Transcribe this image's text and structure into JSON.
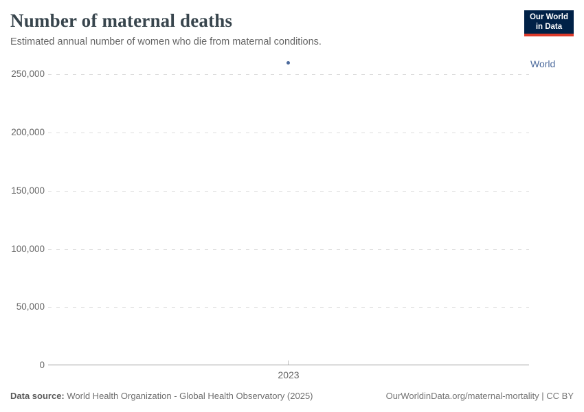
{
  "header": {
    "title": "Number of maternal deaths",
    "subtitle": "Estimated annual number of women who die from maternal conditions."
  },
  "logo": {
    "line1": "Our World",
    "line2": "in Data"
  },
  "chart_data": {
    "type": "scatter",
    "title": "Number of maternal deaths",
    "subtitle": "Estimated annual number of women who die from maternal conditions.",
    "categories": [
      2023
    ],
    "series": [
      {
        "name": "World",
        "x": [
          2023
        ],
        "values": [
          260000
        ],
        "color": "#4c6a9c"
      }
    ],
    "xlabel": "",
    "ylabel": "",
    "x_ticks": [
      "2023"
    ],
    "y_ticks": [
      "0",
      "50,000",
      "100,000",
      "150,000",
      "200,000",
      "250,000"
    ],
    "ylim": [
      0,
      262000
    ],
    "grid": "horizontal-dashed",
    "legend_position": "inline-right"
  },
  "footer": {
    "source_label": "Data source:",
    "source_text": " World Health Organization - Global Health Observatory (2025)",
    "link": "OurWorldinData.org/maternal-mortality",
    "license": " | CC BY"
  },
  "colors": {
    "accent_series": "#4c6a9c",
    "logo_navy": "#002147",
    "logo_red": "#dc3a2a",
    "grid": "#dddddd",
    "axis": "#999999",
    "title_text": "#38454d",
    "muted_text": "#666666"
  }
}
